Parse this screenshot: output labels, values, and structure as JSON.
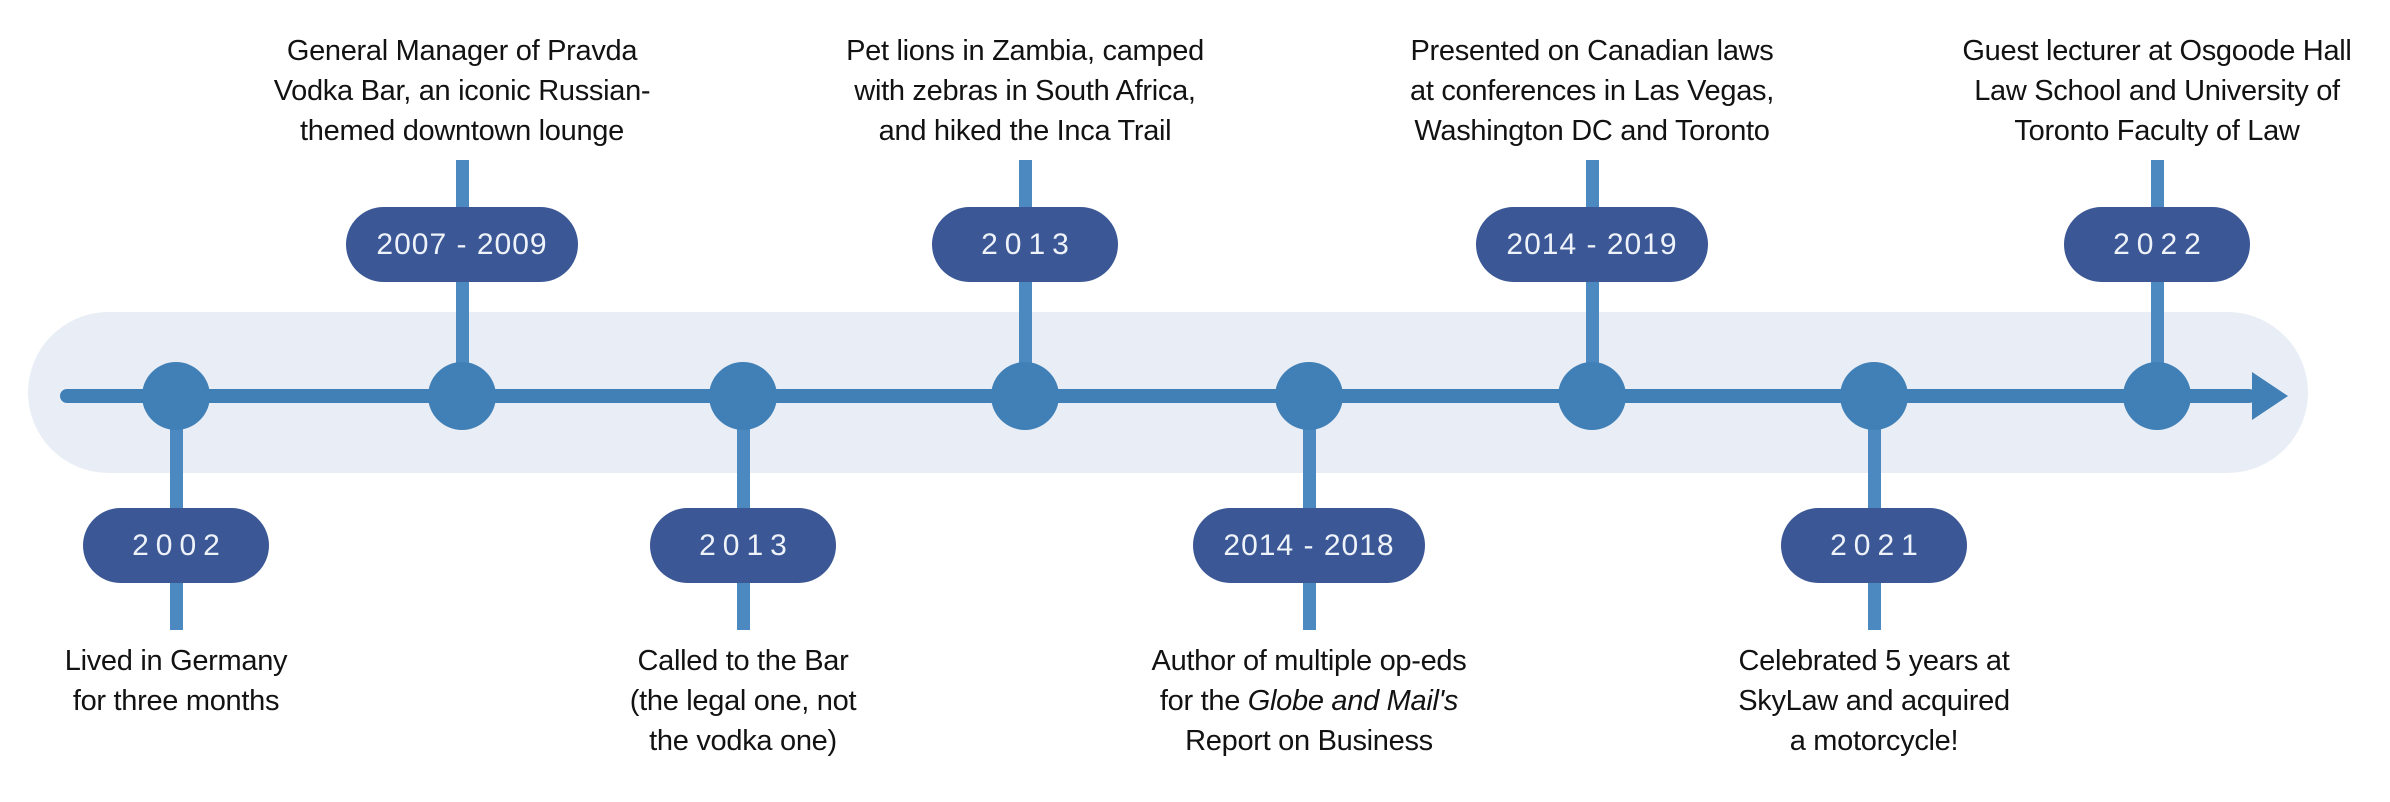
{
  "colors": {
    "line": "#4080b7",
    "stem": "#4c89c1",
    "band": "#e9eef6",
    "badge": "#3b5795",
    "badge_text": "#eef2f9",
    "text": "#121212",
    "background": "#ffffff"
  },
  "timeline": {
    "direction": "left-to-right",
    "arrow_icon": "arrow-right"
  },
  "events": [
    {
      "badge": "2002",
      "side": "below",
      "lines": [
        "Lived in Germany",
        "for three months"
      ]
    },
    {
      "badge": "2007 - 2009",
      "side": "above",
      "lines": [
        "General Manager of Pravda",
        "Vodka Bar, an iconic Russian-",
        "themed downtown lounge"
      ]
    },
    {
      "badge": "2013",
      "side": "below",
      "lines": [
        "Called to the Bar",
        "(the legal one, not",
        "the vodka one)"
      ]
    },
    {
      "badge": "2013",
      "side": "above",
      "lines": [
        "Pet lions in Zambia, camped",
        "with zebras in South Africa,",
        "and hiked the Inca Trail"
      ]
    },
    {
      "badge": "2014 - 2018",
      "side": "below",
      "lines": [
        "Author of multiple op-eds",
        {
          "pre": "for the ",
          "italic": "Globe and Mail's"
        },
        "Report on Business"
      ]
    },
    {
      "badge": "2014 - 2019",
      "side": "above",
      "lines": [
        "Presented on Canadian laws",
        "at conferences in Las Vegas,",
        "Washington DC and Toronto"
      ]
    },
    {
      "badge": "2021",
      "side": "below",
      "lines": [
        "Celebrated 5 years at",
        "SkyLaw and acquired",
        "a motorcycle!"
      ]
    },
    {
      "badge": "2022",
      "side": "above",
      "lines": [
        "Guest lecturer at Osgoode Hall",
        "Law School and University of",
        "Toronto Faculty of Law"
      ]
    }
  ]
}
